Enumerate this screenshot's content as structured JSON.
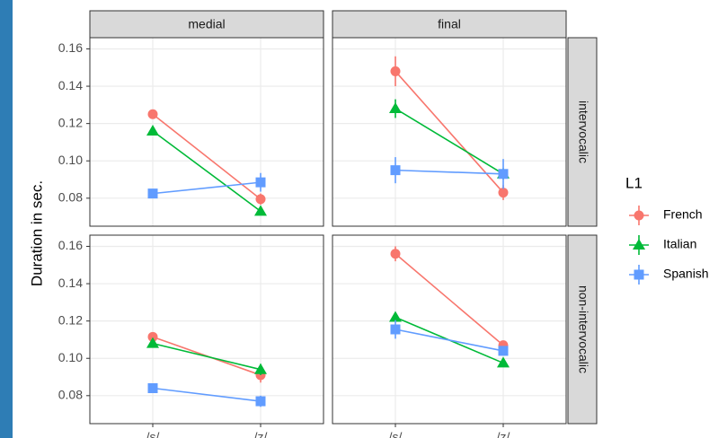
{
  "shared": {
    "ylabel": "Duration in sec.",
    "legend_title": "L1",
    "columns": [
      "medial",
      "final"
    ],
    "rows": [
      "intervocalic",
      "non-intervocalic"
    ]
  },
  "chart_data": [
    {
      "type": "line",
      "categories": [
        "/s/",
        "/z/"
      ],
      "ylim": [
        0.065,
        0.166
      ],
      "yticks": [
        0.08,
        {
          "value": 0.1,
          "label": "0.10"
        },
        0.12,
        0.14,
        0.16
      ],
      "grid": true,
      "series": [
        {
          "name": "French",
          "color": "#F8766D",
          "marker": "circle",
          "values": [
            0.125,
            0.0795
          ],
          "errors": [
            0.002,
            0.003
          ]
        },
        {
          "name": "Italian",
          "color": "#00BA38",
          "marker": "triangle",
          "values": [
            0.116,
            0.073
          ],
          "errors": [
            0.002,
            0.002
          ]
        },
        {
          "name": "Spanish",
          "color": "#619CFF",
          "marker": "square",
          "values": [
            0.0825,
            0.0885
          ],
          "errors": [
            0.002,
            0.005
          ]
        }
      ]
    },
    {
      "type": "line",
      "categories": [
        "/s/",
        "/z/"
      ],
      "ylim": [
        0.065,
        0.166
      ],
      "yticks": [
        0.08,
        {
          "value": 0.1,
          "label": "0.10"
        },
        0.12,
        0.14,
        0.16
      ],
      "grid": true,
      "series": [
        {
          "name": "French",
          "color": "#F8766D",
          "marker": "circle",
          "values": [
            0.148,
            0.083
          ],
          "errors": [
            0.008,
            0.004
          ]
        },
        {
          "name": "Italian",
          "color": "#00BA38",
          "marker": "triangle",
          "values": [
            0.128,
            0.093
          ],
          "errors": [
            0.005,
            0.003
          ]
        },
        {
          "name": "Spanish",
          "color": "#619CFF",
          "marker": "square",
          "values": [
            0.095,
            0.093
          ],
          "errors": [
            0.007,
            0.008
          ]
        }
      ]
    },
    {
      "type": "line",
      "categories": [
        "/s/",
        "/z/"
      ],
      "ylim": [
        0.065,
        0.166
      ],
      "yticks": [
        0.08,
        {
          "value": 0.1,
          "label": "0.10"
        },
        0.12,
        0.14,
        0.16
      ],
      "grid": true,
      "series": [
        {
          "name": "French",
          "color": "#F8766D",
          "marker": "circle",
          "values": [
            0.1115,
            0.091
          ],
          "errors": [
            0.002,
            0.004
          ]
        },
        {
          "name": "Italian",
          "color": "#00BA38",
          "marker": "triangle",
          "values": [
            0.108,
            0.094
          ],
          "errors": [
            0.002,
            0.003
          ]
        },
        {
          "name": "Spanish",
          "color": "#619CFF",
          "marker": "square",
          "values": [
            0.084,
            0.077
          ],
          "errors": [
            0.002,
            0.003
          ]
        }
      ]
    },
    {
      "type": "line",
      "categories": [
        "/s/",
        "/z/"
      ],
      "ylim": [
        0.065,
        0.166
      ],
      "yticks": [
        0.08,
        {
          "value": 0.1,
          "label": "0.10"
        },
        0.12,
        0.14,
        0.16
      ],
      "grid": true,
      "series": [
        {
          "name": "French",
          "color": "#F8766D",
          "marker": "circle",
          "values": [
            0.156,
            0.107
          ],
          "errors": [
            0.004,
            0.002
          ]
        },
        {
          "name": "Italian",
          "color": "#00BA38",
          "marker": "triangle",
          "values": [
            0.122,
            0.0975
          ],
          "errors": [
            0.002,
            0.002
          ]
        },
        {
          "name": "Spanish",
          "color": "#619CFF",
          "marker": "square",
          "values": [
            0.1155,
            0.104
          ],
          "errors": [
            0.005,
            0.002
          ]
        }
      ]
    }
  ]
}
